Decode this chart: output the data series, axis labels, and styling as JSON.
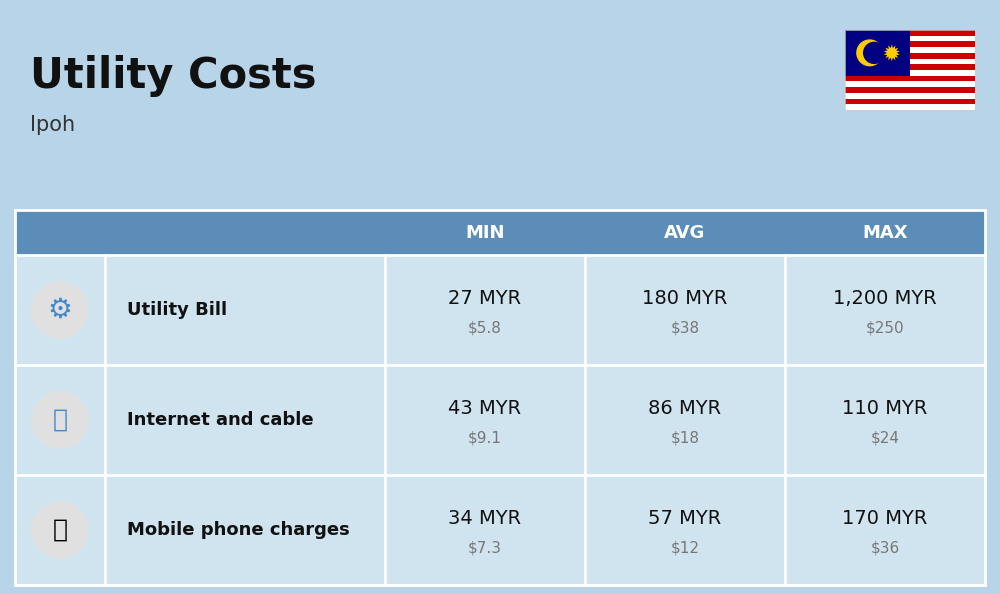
{
  "title": "Utility Costs",
  "subtitle": "Ipoh",
  "background_color": "#b8d4e8",
  "header_bg_color": "#5b8db8",
  "header_text_color": "#ffffff",
  "row_bg_color": "#d0e4f0",
  "separator_color": "#ffffff",
  "col_header": [
    "MIN",
    "AVG",
    "MAX"
  ],
  "rows": [
    {
      "label": "Utility Bill",
      "min_myr": "27 MYR",
      "min_usd": "$5.8",
      "avg_myr": "180 MYR",
      "avg_usd": "$38",
      "max_myr": "1,200 MYR",
      "max_usd": "$250",
      "icon": "utility"
    },
    {
      "label": "Internet and cable",
      "min_myr": "43 MYR",
      "min_usd": "$9.1",
      "avg_myr": "86 MYR",
      "avg_usd": "$18",
      "max_myr": "110 MYR",
      "max_usd": "$24",
      "icon": "internet"
    },
    {
      "label": "Mobile phone charges",
      "min_myr": "34 MYR",
      "min_usd": "$7.3",
      "avg_myr": "57 MYR",
      "avg_usd": "$12",
      "max_myr": "170 MYR",
      "max_usd": "$36",
      "icon": "mobile"
    }
  ],
  "title_fontsize": 30,
  "subtitle_fontsize": 15,
  "header_fontsize": 13,
  "label_fontsize": 13,
  "value_fontsize": 14,
  "usd_fontsize": 11,
  "title_color": "#111111",
  "subtitle_color": "#333333",
  "label_color": "#111111",
  "value_color": "#111111",
  "usd_color": "#777777"
}
